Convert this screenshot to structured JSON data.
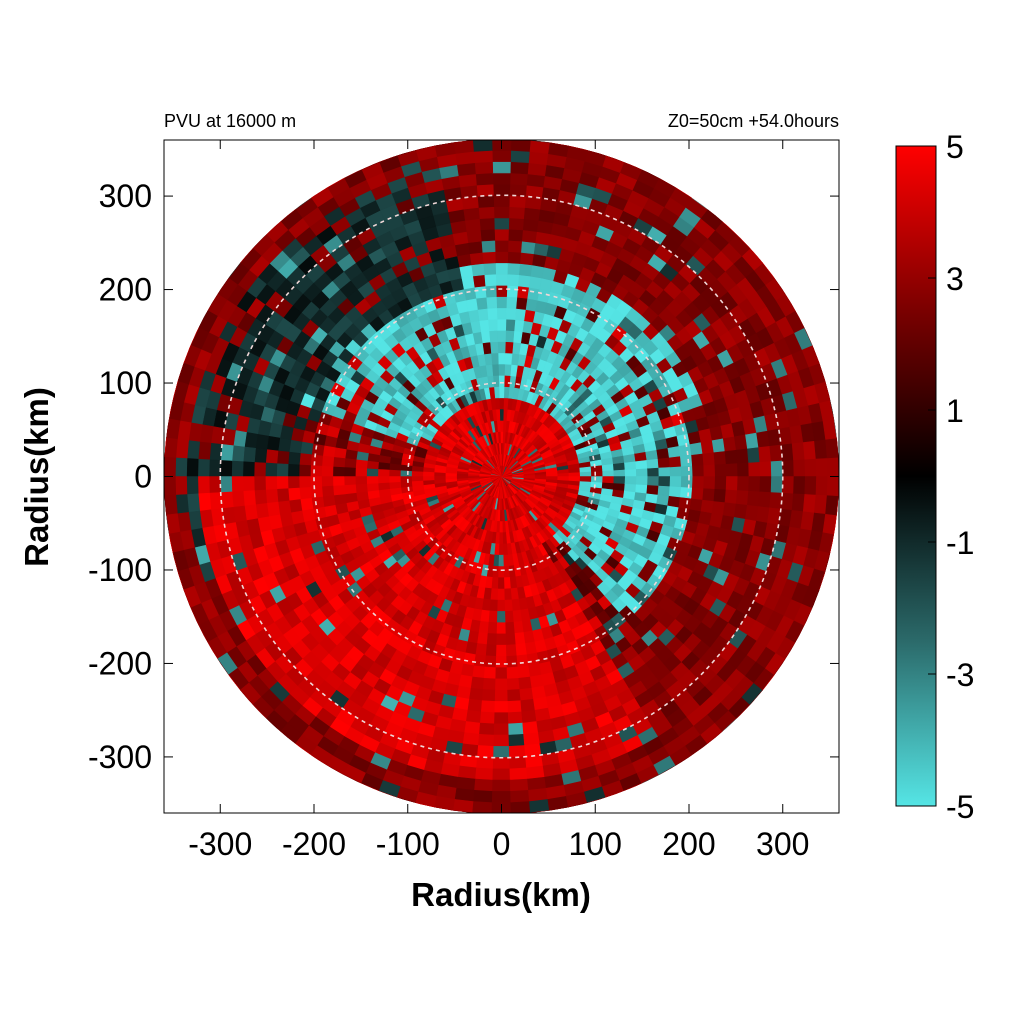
{
  "chart_data": {
    "type": "heatmap",
    "title_left": "PVU at 16000 m",
    "title_right": "Z0=50cm  +54.0hours",
    "xlabel": "Radius(km)",
    "ylabel": "Radius(km)",
    "xlim": [
      -360,
      360
    ],
    "ylim": [
      -360,
      360
    ],
    "x_ticks": [
      -300,
      -200,
      -100,
      0,
      100,
      200,
      300
    ],
    "y_ticks": [
      300,
      200,
      100,
      0,
      -100,
      -200,
      -300
    ],
    "domain_radius": 360,
    "range_rings": [
      100,
      200,
      300
    ],
    "colorbar": {
      "min": -5,
      "max": 5,
      "ticks": [
        5,
        3,
        1,
        -1,
        -3,
        -5
      ],
      "colors": {
        "high": "#ff0000",
        "mid_high": "#7a0000",
        "zero": "#000000",
        "mid_low": "#2b6a6a",
        "low": "#55e5e5"
      }
    },
    "field_regions": [
      {
        "name": "outer-annulus",
        "r_range": [
          200,
          360
        ],
        "theta_deg": [
          0,
          360
        ],
        "value": 3.5
      },
      {
        "name": "cyan-core-north",
        "r_range": [
          60,
          230
        ],
        "theta_deg": [
          20,
          160
        ],
        "value": -4.5
      },
      {
        "name": "cyan-core-east",
        "r_range": [
          40,
          200
        ],
        "theta_deg": [
          -50,
          20
        ],
        "value": -4.5
      },
      {
        "name": "dark-band-northwest",
        "r_range": [
          200,
          330
        ],
        "theta_deg": [
          100,
          200
        ],
        "value": -1.0
      },
      {
        "name": "red-center",
        "r_range": [
          0,
          80
        ],
        "theta_deg": [
          0,
          360
        ],
        "value": 5.0
      },
      {
        "name": "red-southwest",
        "r_range": [
          0,
          320
        ],
        "theta_deg": [
          180,
          300
        ],
        "value": 5.0
      }
    ]
  }
}
